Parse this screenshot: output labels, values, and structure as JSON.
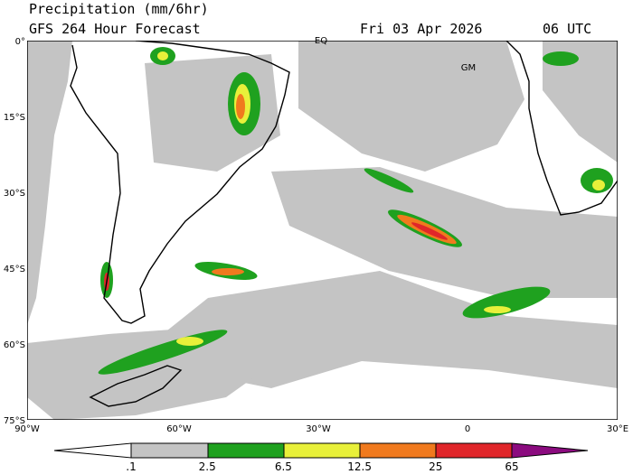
{
  "header": {
    "title": "Precipitation (mm/6hr)",
    "subtitle": "GFS 264 Hour Forecast",
    "date": "Fri 03 Apr 2026",
    "time": "06 UTC"
  },
  "map": {
    "lat_labels": [
      "0°",
      "15°S",
      "30°S",
      "45°S",
      "60°S",
      "75°S"
    ],
    "lon_labels": [
      "90°W",
      "60°W",
      "30°W",
      "0",
      "30°E"
    ],
    "place_labels": [
      "EQ",
      "GM"
    ]
  },
  "colorbar": {
    "labels": [
      ".1",
      "2.5",
      "6.5",
      "12.5",
      "25",
      "65"
    ]
  }
}
